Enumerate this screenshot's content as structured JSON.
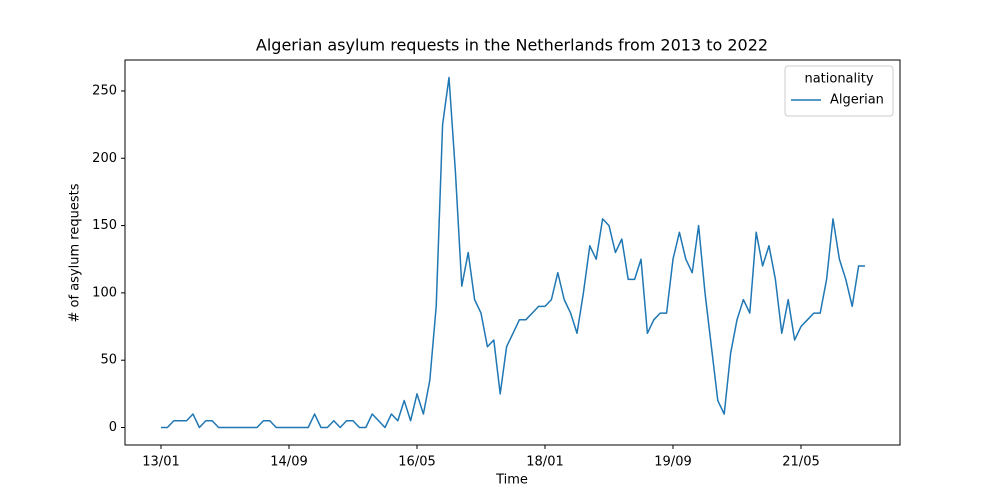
{
  "chart_data": {
    "type": "line",
    "title": "Algerian asylum requests in the Netherlands from 2013 to 2022",
    "x_label": "Time",
    "y_label": "# of asylum requests",
    "categories": [
      "13/01",
      null,
      null,
      null,
      null,
      null,
      null,
      null,
      null,
      null,
      null,
      null,
      null,
      null,
      null,
      null,
      null,
      null,
      null,
      null,
      "14/09",
      null,
      null,
      null,
      null,
      null,
      null,
      null,
      null,
      null,
      null,
      null,
      null,
      null,
      null,
      null,
      null,
      null,
      null,
      null,
      "16/05",
      null,
      null,
      null,
      null,
      null,
      null,
      null,
      null,
      null,
      null,
      null,
      null,
      null,
      null,
      null,
      null,
      null,
      null,
      null,
      "18/01",
      null,
      null,
      null,
      null,
      null,
      null,
      null,
      null,
      null,
      null,
      null,
      null,
      null,
      null,
      null,
      null,
      null,
      null,
      null,
      "19/09",
      null,
      null,
      null,
      null,
      null,
      null,
      null,
      null,
      null,
      null,
      null,
      null,
      null,
      null,
      null,
      null,
      null,
      null,
      null,
      "21/05",
      null,
      null,
      null,
      null,
      null,
      null,
      null,
      null,
      null,
      null
    ],
    "series": [
      {
        "name": "Algerian",
        "color": "#1f77b4",
        "values": [
          0,
          0,
          5,
          5,
          5,
          10,
          0,
          5,
          5,
          0,
          0,
          0,
          0,
          0,
          0,
          0,
          5,
          5,
          0,
          0,
          0,
          0,
          0,
          0,
          10,
          0,
          0,
          5,
          0,
          5,
          5,
          0,
          0,
          10,
          5,
          0,
          10,
          5,
          20,
          5,
          25,
          10,
          35,
          90,
          225,
          260,
          190,
          105,
          130,
          95,
          85,
          60,
          65,
          25,
          60,
          70,
          80,
          80,
          85,
          90,
          90,
          95,
          115,
          95,
          85,
          70,
          100,
          135,
          125,
          155,
          150,
          130,
          140,
          110,
          110,
          125,
          70,
          80,
          85,
          85,
          125,
          145,
          125,
          115,
          150,
          100,
          60,
          20,
          10,
          55,
          80,
          95,
          85,
          145,
          120,
          135,
          110,
          70,
          95,
          65,
          75,
          80,
          85,
          85,
          110,
          155,
          125,
          110,
          90,
          120,
          120
        ]
      }
    ],
    "ylim": [
      -13,
      273
    ],
    "yticks": [
      0,
      50,
      100,
      150,
      200,
      250
    ],
    "legend": {
      "title": "nationality",
      "loc": "upper right"
    }
  }
}
